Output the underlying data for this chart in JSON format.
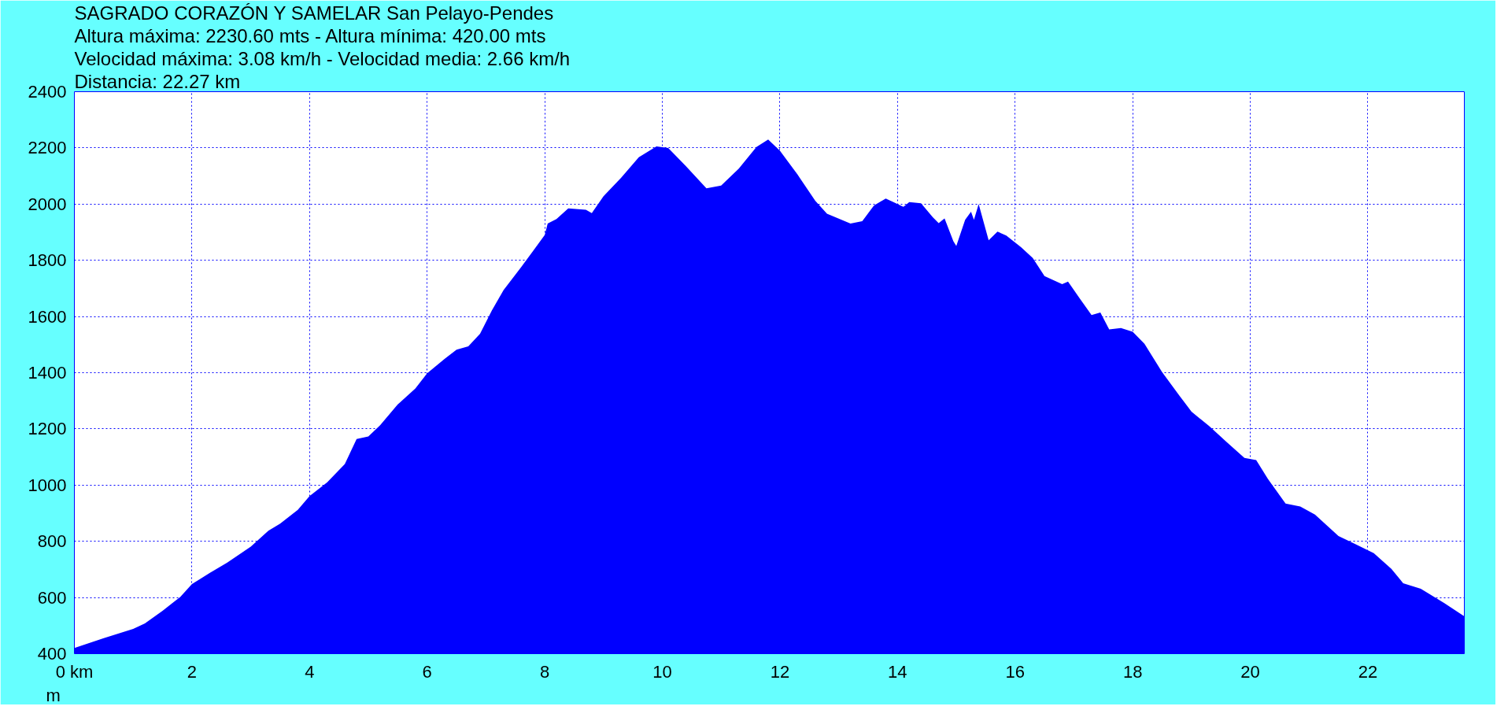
{
  "chart_data": {
    "type": "area",
    "title": "SAGRADO CORAZÓN Y SAMELAR San Pelayo-Pendes",
    "annotations": [
      "Altura máxima: 2230.60 mts - Altura mínima: 420.00 mts",
      "Velocidad máxima: 3.08 km/h - Velocidad media: 2.66 km/h",
      "Distancia: 22.27 km"
    ],
    "ylabel": "m",
    "x": [
      0,
      0.5,
      1.0,
      1.2,
      1.5,
      1.8,
      2.0,
      2.3,
      2.6,
      3.0,
      3.3,
      3.5,
      3.8,
      4.0,
      4.3,
      4.6,
      4.8,
      5.0,
      5.2,
      5.5,
      5.8,
      6.0,
      6.3,
      6.5,
      6.7,
      6.9,
      7.1,
      7.3,
      7.6,
      7.8,
      8.0,
      8.05,
      8.2,
      8.4,
      8.7,
      8.8,
      9.0,
      9.3,
      9.6,
      9.9,
      10.1,
      10.4,
      10.75,
      11.0,
      11.3,
      11.6,
      11.8,
      12.0,
      12.3,
      12.6,
      12.8,
      13.2,
      13.4,
      13.6,
      13.8,
      14.1,
      14.2,
      14.4,
      14.6,
      14.7,
      14.8,
      14.95,
      15.0,
      15.15,
      15.25,
      15.3,
      15.38,
      15.55,
      15.7,
      15.85,
      16.1,
      16.3,
      16.5,
      16.8,
      16.9,
      17.1,
      17.3,
      17.45,
      17.6,
      17.8,
      18.0,
      18.2,
      18.5,
      18.8,
      19.0,
      19.3,
      19.6,
      19.9,
      20.1,
      20.3,
      20.6,
      20.85,
      21.1,
      21.5,
      21.8,
      22.1,
      22.4,
      22.6,
      22.9,
      23.3,
      23.64
    ],
    "series": [
      {
        "color": "#0000ff",
        "values": [
          420,
          455,
          488,
          508,
          553,
          602,
          648,
          687,
          724,
          781,
          838,
          863,
          912,
          961,
          1010,
          1075,
          1164,
          1173,
          1213,
          1287,
          1344,
          1398,
          1450,
          1482,
          1494,
          1539,
          1621,
          1694,
          1776,
          1833,
          1890,
          1931,
          1947,
          1985,
          1980,
          1968,
          2028,
          2094,
          2167,
          2205,
          2200,
          2135,
          2056,
          2066,
          2126,
          2203,
          2230,
          2190,
          2105,
          2012,
          1966,
          1931,
          1939,
          1995,
          2020,
          1990,
          2007,
          2003,
          1953,
          1932,
          1949,
          1868,
          1851,
          1944,
          1973,
          1944,
          2000,
          1871,
          1902,
          1888,
          1847,
          1808,
          1744,
          1715,
          1724,
          1664,
          1605,
          1614,
          1554,
          1559,
          1546,
          1503,
          1402,
          1317,
          1261,
          1210,
          1153,
          1097,
          1089,
          1022,
          934,
          924,
          895,
          819,
          789,
          758,
          702,
          651,
          631,
          580,
          533
        ]
      }
    ],
    "xlim": [
      0,
      23.64
    ],
    "ylim": [
      400,
      2400
    ],
    "xticks": [
      {
        "value": 0,
        "label": "0 km"
      },
      2,
      4,
      6,
      8,
      10,
      12,
      14,
      16,
      18,
      20,
      22
    ],
    "yticks": [
      400,
      600,
      800,
      1000,
      1200,
      1400,
      1600,
      1800,
      2000,
      2200,
      2400
    ],
    "grid": true
  }
}
